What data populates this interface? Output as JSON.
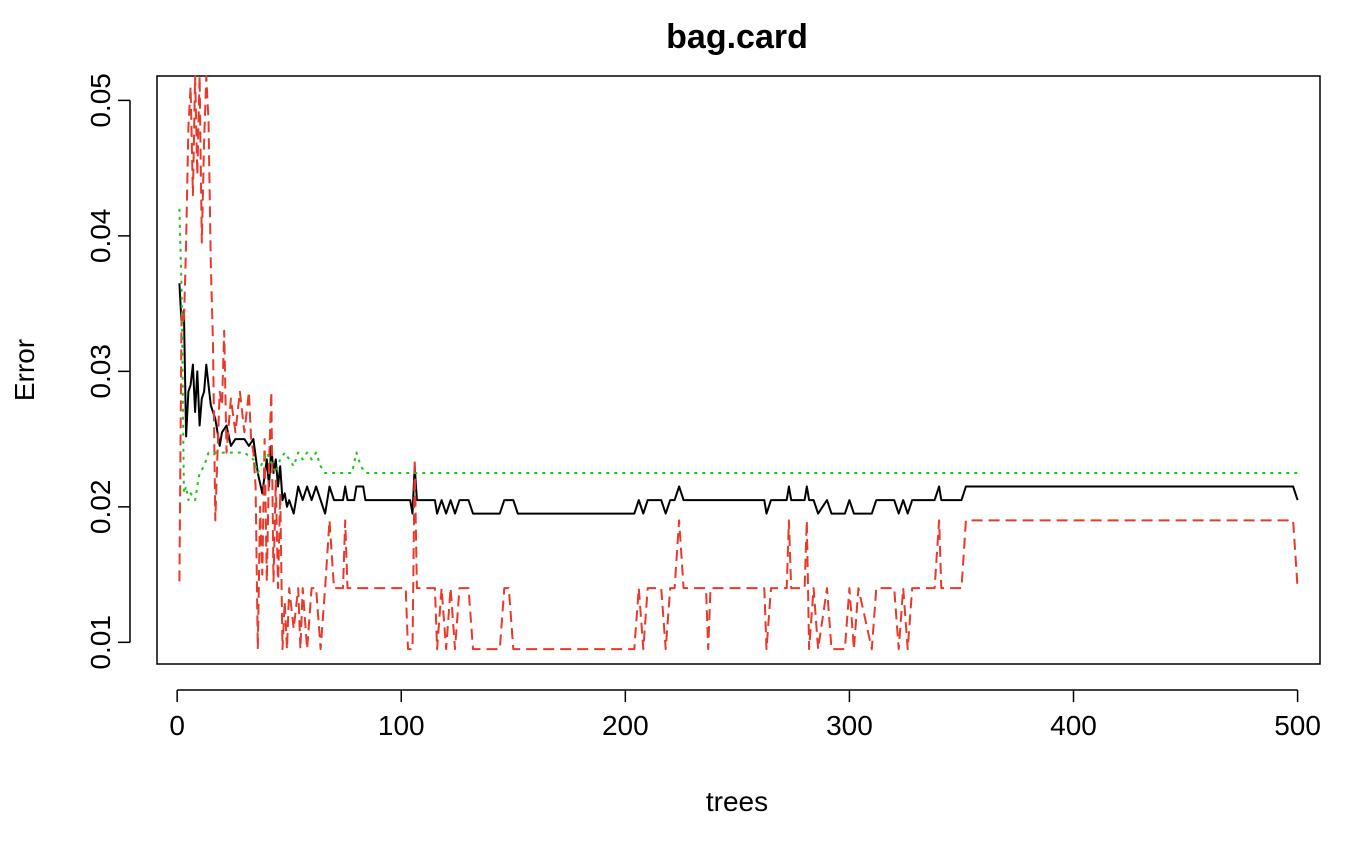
{
  "chart_data": {
    "type": "line",
    "title": "bag.card",
    "xlabel": "trees",
    "ylabel": "Error",
    "xlim": [
      -9,
      510
    ],
    "ylim": [
      0.0084,
      0.0518
    ],
    "x_ticks": [
      0,
      100,
      200,
      300,
      400,
      500
    ],
    "y_ticks": [
      0.01,
      0.02,
      0.03,
      0.04,
      0.05
    ],
    "x_tick_labels": [
      "0",
      "100",
      "200",
      "300",
      "400",
      "500"
    ],
    "y_tick_labels": [
      "0.01",
      "0.02",
      "0.03",
      "0.04",
      "0.05"
    ],
    "grid": false,
    "legend": "none",
    "series": [
      {
        "key": "oob",
        "color": "#000000",
        "dash": "solid",
        "points": [
          [
            1,
            0.0365
          ],
          [
            2,
            0.0335
          ],
          [
            3,
            0.0345
          ],
          [
            4,
            0.0252
          ],
          [
            5,
            0.0285
          ],
          [
            6,
            0.029
          ],
          [
            7,
            0.0305
          ],
          [
            8,
            0.027
          ],
          [
            9,
            0.03
          ],
          [
            10,
            0.026
          ],
          [
            11,
            0.028
          ],
          [
            12,
            0.0285
          ],
          [
            13,
            0.0305
          ],
          [
            14,
            0.029
          ],
          [
            15,
            0.0275
          ],
          [
            16,
            0.027
          ],
          [
            17,
            0.0265
          ],
          [
            18,
            0.0255
          ],
          [
            19,
            0.0245
          ],
          [
            20,
            0.0255
          ],
          [
            22,
            0.026
          ],
          [
            24,
            0.0245
          ],
          [
            26,
            0.025
          ],
          [
            30,
            0.025
          ],
          [
            32,
            0.0245
          ],
          [
            34,
            0.025
          ],
          [
            36,
            0.0225
          ],
          [
            38,
            0.021
          ],
          [
            40,
            0.0235
          ],
          [
            41,
            0.0215
          ],
          [
            42,
            0.0245
          ],
          [
            43,
            0.0225
          ],
          [
            44,
            0.0235
          ],
          [
            45,
            0.0215
          ],
          [
            46,
            0.023
          ],
          [
            47,
            0.0205
          ],
          [
            48,
            0.021
          ],
          [
            49,
            0.02
          ],
          [
            50,
            0.0205
          ],
          [
            52,
            0.0195
          ],
          [
            54,
            0.0215
          ],
          [
            56,
            0.0205
          ],
          [
            58,
            0.0215
          ],
          [
            60,
            0.0205
          ],
          [
            62,
            0.0215
          ],
          [
            64,
            0.0205
          ],
          [
            66,
            0.0195
          ],
          [
            68,
            0.0215
          ],
          [
            70,
            0.0205
          ],
          [
            74,
            0.0205
          ],
          [
            75,
            0.0215
          ],
          [
            76,
            0.0205
          ],
          [
            79,
            0.0205
          ],
          [
            80,
            0.0215
          ],
          [
            83,
            0.0215
          ],
          [
            84,
            0.0205
          ],
          [
            104,
            0.0205
          ],
          [
            105,
            0.0195
          ],
          [
            106,
            0.023
          ],
          [
            107,
            0.0205
          ],
          [
            115,
            0.0205
          ],
          [
            116,
            0.0195
          ],
          [
            118,
            0.0205
          ],
          [
            120,
            0.0195
          ],
          [
            122,
            0.0205
          ],
          [
            124,
            0.0195
          ],
          [
            126,
            0.0205
          ],
          [
            130,
            0.0205
          ],
          [
            132,
            0.0195
          ],
          [
            144,
            0.0195
          ],
          [
            146,
            0.0205
          ],
          [
            150,
            0.0205
          ],
          [
            152,
            0.0195
          ],
          [
            204,
            0.0195
          ],
          [
            206,
            0.0205
          ],
          [
            208,
            0.0195
          ],
          [
            210,
            0.0205
          ],
          [
            216,
            0.0205
          ],
          [
            218,
            0.0195
          ],
          [
            220,
            0.0205
          ],
          [
            222,
            0.0205
          ],
          [
            224,
            0.0215
          ],
          [
            226,
            0.0205
          ],
          [
            262,
            0.0205
          ],
          [
            263,
            0.0195
          ],
          [
            265,
            0.0205
          ],
          [
            272,
            0.0205
          ],
          [
            273,
            0.0215
          ],
          [
            274,
            0.0205
          ],
          [
            280,
            0.0205
          ],
          [
            281,
            0.0215
          ],
          [
            282,
            0.0205
          ],
          [
            284,
            0.0205
          ],
          [
            286,
            0.0195
          ],
          [
            290,
            0.0205
          ],
          [
            292,
            0.0195
          ],
          [
            298,
            0.0195
          ],
          [
            300,
            0.0205
          ],
          [
            302,
            0.0195
          ],
          [
            310,
            0.0195
          ],
          [
            312,
            0.0205
          ],
          [
            320,
            0.0205
          ],
          [
            322,
            0.0195
          ],
          [
            324,
            0.0205
          ],
          [
            326,
            0.0195
          ],
          [
            328,
            0.0205
          ],
          [
            338,
            0.0205
          ],
          [
            340,
            0.0215
          ],
          [
            341,
            0.0205
          ],
          [
            350,
            0.0205
          ],
          [
            352,
            0.0215
          ],
          [
            498,
            0.0215
          ],
          [
            500,
            0.0205
          ]
        ]
      },
      {
        "key": "class-1",
        "color": "#e8392a",
        "dash": "dashed",
        "points": [
          [
            1,
            0.0145
          ],
          [
            2,
            0.0345
          ],
          [
            3,
            0.0335
          ],
          [
            4,
            0.0395
          ],
          [
            5,
            0.048
          ],
          [
            6,
            0.051
          ],
          [
            7,
            0.043
          ],
          [
            8,
            0.0518
          ],
          [
            9,
            0.0445
          ],
          [
            10,
            0.0518
          ],
          [
            11,
            0.0395
          ],
          [
            12,
            0.047
          ],
          [
            13,
            0.0518
          ],
          [
            14,
            0.0485
          ],
          [
            15,
            0.038
          ],
          [
            16,
            0.032
          ],
          [
            17,
            0.019
          ],
          [
            18,
            0.024
          ],
          [
            19,
            0.0285
          ],
          [
            20,
            0.0275
          ],
          [
            21,
            0.033
          ],
          [
            22,
            0.024
          ],
          [
            24,
            0.028
          ],
          [
            26,
            0.0255
          ],
          [
            28,
            0.0285
          ],
          [
            30,
            0.0255
          ],
          [
            32,
            0.0285
          ],
          [
            33,
            0.025
          ],
          [
            34,
            0.024
          ],
          [
            35,
            0.0215
          ],
          [
            36,
            0.0095
          ],
          [
            37,
            0.02
          ],
          [
            38,
            0.015
          ],
          [
            39,
            0.025
          ],
          [
            40,
            0.0145
          ],
          [
            41,
            0.023
          ],
          [
            42,
            0.0285
          ],
          [
            43,
            0.0145
          ],
          [
            44,
            0.022
          ],
          [
            45,
            0.014
          ],
          [
            46,
            0.021
          ],
          [
            47,
            0.0095
          ],
          [
            48,
            0.013
          ],
          [
            49,
            0.0095
          ],
          [
            50,
            0.014
          ],
          [
            52,
            0.011
          ],
          [
            54,
            0.014
          ],
          [
            55,
            0.0095
          ],
          [
            56,
            0.014
          ],
          [
            58,
            0.0095
          ],
          [
            60,
            0.014
          ],
          [
            62,
            0.014
          ],
          [
            64,
            0.0095
          ],
          [
            66,
            0.014
          ],
          [
            68,
            0.019
          ],
          [
            70,
            0.014
          ],
          [
            74,
            0.014
          ],
          [
            75,
            0.019
          ],
          [
            76,
            0.014
          ],
          [
            102,
            0.014
          ],
          [
            103,
            0.0095
          ],
          [
            105,
            0.0095
          ],
          [
            106,
            0.0235
          ],
          [
            107,
            0.014
          ],
          [
            115,
            0.014
          ],
          [
            116,
            0.0095
          ],
          [
            118,
            0.014
          ],
          [
            120,
            0.0095
          ],
          [
            122,
            0.014
          ],
          [
            124,
            0.0095
          ],
          [
            126,
            0.014
          ],
          [
            130,
            0.014
          ],
          [
            132,
            0.0095
          ],
          [
            144,
            0.0095
          ],
          [
            146,
            0.014
          ],
          [
            148,
            0.014
          ],
          [
            150,
            0.0095
          ],
          [
            204,
            0.0095
          ],
          [
            206,
            0.014
          ],
          [
            208,
            0.0095
          ],
          [
            210,
            0.014
          ],
          [
            216,
            0.014
          ],
          [
            218,
            0.0095
          ],
          [
            220,
            0.014
          ],
          [
            222,
            0.014
          ],
          [
            224,
            0.019
          ],
          [
            226,
            0.014
          ],
          [
            236,
            0.014
          ],
          [
            237,
            0.0095
          ],
          [
            238,
            0.014
          ],
          [
            262,
            0.014
          ],
          [
            263,
            0.0095
          ],
          [
            265,
            0.014
          ],
          [
            272,
            0.014
          ],
          [
            273,
            0.019
          ],
          [
            274,
            0.014
          ],
          [
            280,
            0.014
          ],
          [
            281,
            0.019
          ],
          [
            282,
            0.0095
          ],
          [
            284,
            0.014
          ],
          [
            286,
            0.0095
          ],
          [
            290,
            0.014
          ],
          [
            292,
            0.0095
          ],
          [
            298,
            0.0095
          ],
          [
            300,
            0.014
          ],
          [
            302,
            0.0095
          ],
          [
            304,
            0.014
          ],
          [
            310,
            0.0095
          ],
          [
            312,
            0.014
          ],
          [
            320,
            0.014
          ],
          [
            322,
            0.0095
          ],
          [
            324,
            0.014
          ],
          [
            326,
            0.0095
          ],
          [
            328,
            0.014
          ],
          [
            338,
            0.014
          ],
          [
            340,
            0.019
          ],
          [
            341,
            0.014
          ],
          [
            350,
            0.014
          ],
          [
            352,
            0.019
          ],
          [
            498,
            0.019
          ],
          [
            500,
            0.014
          ]
        ]
      },
      {
        "key": "class-0",
        "color": "#22c41a",
        "dash": "dotted",
        "points": [
          [
            1,
            0.042
          ],
          [
            2,
            0.036
          ],
          [
            3,
            0.021
          ],
          [
            4,
            0.0215
          ],
          [
            5,
            0.0205
          ],
          [
            6,
            0.021
          ],
          [
            8,
            0.0205
          ],
          [
            9,
            0.0215
          ],
          [
            10,
            0.0225
          ],
          [
            12,
            0.023
          ],
          [
            14,
            0.024
          ],
          [
            30,
            0.024
          ],
          [
            34,
            0.0235
          ],
          [
            36,
            0.0225
          ],
          [
            40,
            0.024
          ],
          [
            44,
            0.0225
          ],
          [
            46,
            0.0235
          ],
          [
            48,
            0.024
          ],
          [
            50,
            0.0235
          ],
          [
            52,
            0.023
          ],
          [
            54,
            0.024
          ],
          [
            56,
            0.0235
          ],
          [
            58,
            0.024
          ],
          [
            60,
            0.0235
          ],
          [
            62,
            0.024
          ],
          [
            64,
            0.023
          ],
          [
            66,
            0.0225
          ],
          [
            78,
            0.0225
          ],
          [
            80,
            0.024
          ],
          [
            82,
            0.023
          ],
          [
            84,
            0.0225
          ],
          [
            500,
            0.0225
          ]
        ]
      }
    ]
  }
}
